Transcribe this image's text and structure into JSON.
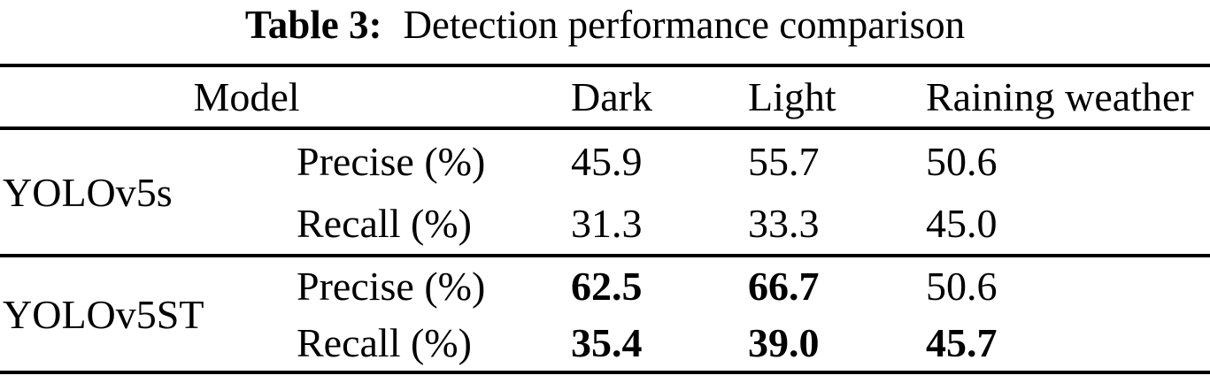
{
  "title": {
    "prefix": "Table 3:",
    "caption": "Detection performance comparison"
  },
  "table": {
    "header": {
      "model": "Model",
      "cols": [
        "Dark",
        "Light",
        "Raining weather"
      ]
    },
    "groups": [
      {
        "model": "YOLOv5s",
        "rows": [
          {
            "metric": "Precise (%)",
            "values": [
              "45.9",
              "55.7",
              "50.6"
            ],
            "bold": [
              false,
              false,
              false
            ]
          },
          {
            "metric": "Recall (%)",
            "values": [
              "31.3",
              "33.3",
              "45.0"
            ],
            "bold": [
              false,
              false,
              false
            ]
          }
        ]
      },
      {
        "model": "YOLOv5ST",
        "rows": [
          {
            "metric": "Precise (%)",
            "values": [
              "62.5",
              "66.7",
              "50.6"
            ],
            "bold": [
              true,
              true,
              false
            ]
          },
          {
            "metric": "Recall (%)",
            "values": [
              "35.4",
              "39.0",
              "45.7"
            ],
            "bold": [
              true,
              true,
              true
            ]
          }
        ]
      }
    ]
  }
}
